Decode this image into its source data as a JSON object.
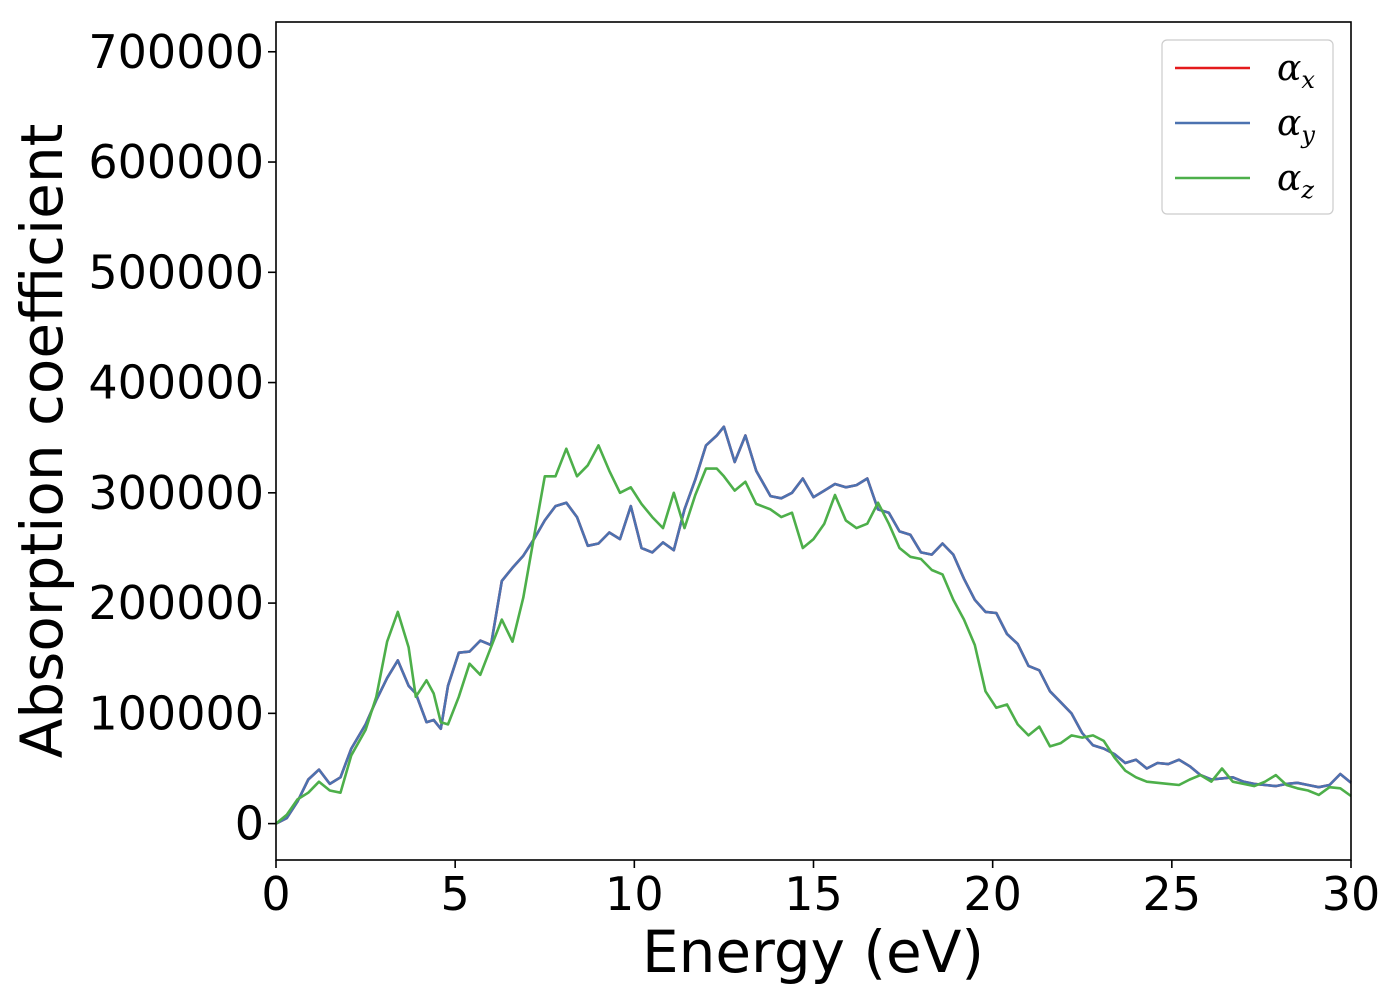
{
  "chart_data": {
    "type": "line",
    "xlabel": "Energy (eV)",
    "ylabel": "Absorption coefficient",
    "xlim": [
      0,
      30
    ],
    "ylim": [
      -33000,
      727000
    ],
    "xticks": [
      0,
      5,
      10,
      15,
      20,
      25,
      30
    ],
    "xtick_labels": [
      "0",
      "5",
      "10",
      "15",
      "20",
      "25",
      "30"
    ],
    "yticks": [
      0,
      100000,
      200000,
      300000,
      400000,
      500000,
      600000,
      700000
    ],
    "ytick_labels": [
      "0",
      "100000",
      "200000",
      "300000",
      "400000",
      "500000",
      "600000",
      "700000"
    ],
    "grid": false,
    "legend_position": "top-right",
    "series": [
      {
        "name": "αx",
        "symbol": "α",
        "subscript": "x",
        "color": "#e41a1c",
        "x": [
          0,
          0.3,
          0.6,
          0.9,
          1.2,
          1.5,
          1.8,
          2.1,
          2.5,
          2.8,
          3.1,
          3.4,
          3.7,
          3.9,
          4.2,
          4.4,
          4.6,
          4.8,
          5.1,
          5.4,
          5.7,
          6.0,
          6.3,
          6.6,
          6.9,
          7.2,
          7.5,
          7.8,
          8.1,
          8.4,
          8.7,
          9.0,
          9.3,
          9.6,
          9.9,
          10.2,
          10.5,
          10.8,
          11.1,
          11.4,
          11.7,
          12.0,
          12.3,
          12.5,
          12.8,
          13.1,
          13.4,
          13.8,
          14.1,
          14.4,
          14.7,
          15.0,
          15.3,
          15.6,
          15.9,
          16.2,
          16.5,
          16.8,
          17.1,
          17.4,
          17.7,
          18.0,
          18.3,
          18.6,
          18.9,
          19.2,
          19.5,
          19.8,
          20.1,
          20.4,
          20.7,
          21.0,
          21.3,
          21.6,
          21.9,
          22.2,
          22.5,
          22.8,
          23.1,
          23.4,
          23.7,
          24.0,
          24.3,
          24.6,
          24.9,
          25.2,
          25.5,
          25.8,
          26.1,
          26.4,
          26.7,
          27.0,
          27.3,
          27.6,
          27.9,
          28.2,
          28.5,
          28.8,
          29.1,
          29.4,
          29.7,
          30.0
        ],
        "y": [
          0,
          5000,
          20000,
          40000,
          49000,
          36000,
          42000,
          68000,
          90000,
          112000,
          132000,
          148000,
          125000,
          118000,
          92000,
          94000,
          86000,
          125000,
          155000,
          156000,
          166000,
          162000,
          220000,
          232000,
          243000,
          258000,
          275000,
          288000,
          291000,
          278000,
          252000,
          254000,
          264000,
          258000,
          288000,
          250000,
          246000,
          255000,
          248000,
          285000,
          312000,
          343000,
          352000,
          360000,
          328000,
          352000,
          320000,
          297000,
          295000,
          300000,
          313000,
          296000,
          302000,
          308000,
          305000,
          307000,
          313000,
          285000,
          282000,
          265000,
          262000,
          246000,
          244000,
          254000,
          244000,
          222000,
          203000,
          192000,
          191000,
          172000,
          163000,
          143000,
          139000,
          120000,
          110000,
          100000,
          82000,
          71000,
          68000,
          63000,
          55000,
          58000,
          50000,
          55000,
          54000,
          58000,
          52000,
          44000,
          40000,
          41000,
          42000,
          38000,
          36000,
          35000,
          34000,
          36000,
          37000,
          35000,
          33000,
          35000,
          45000,
          37000
        ]
      },
      {
        "name": "αy",
        "symbol": "α",
        "subscript": "y",
        "color": "#4c72b0",
        "x": [
          0,
          0.3,
          0.6,
          0.9,
          1.2,
          1.5,
          1.8,
          2.1,
          2.5,
          2.8,
          3.1,
          3.4,
          3.7,
          3.9,
          4.2,
          4.4,
          4.6,
          4.8,
          5.1,
          5.4,
          5.7,
          6.0,
          6.3,
          6.6,
          6.9,
          7.2,
          7.5,
          7.8,
          8.1,
          8.4,
          8.7,
          9.0,
          9.3,
          9.6,
          9.9,
          10.2,
          10.5,
          10.8,
          11.1,
          11.4,
          11.7,
          12.0,
          12.3,
          12.5,
          12.8,
          13.1,
          13.4,
          13.8,
          14.1,
          14.4,
          14.7,
          15.0,
          15.3,
          15.6,
          15.9,
          16.2,
          16.5,
          16.8,
          17.1,
          17.4,
          17.7,
          18.0,
          18.3,
          18.6,
          18.9,
          19.2,
          19.5,
          19.8,
          20.1,
          20.4,
          20.7,
          21.0,
          21.3,
          21.6,
          21.9,
          22.2,
          22.5,
          22.8,
          23.1,
          23.4,
          23.7,
          24.0,
          24.3,
          24.6,
          24.9,
          25.2,
          25.5,
          25.8,
          26.1,
          26.4,
          26.7,
          27.0,
          27.3,
          27.6,
          27.9,
          28.2,
          28.5,
          28.8,
          29.1,
          29.4,
          29.7,
          30.0
        ],
        "y": [
          0,
          5000,
          20000,
          40000,
          49000,
          36000,
          42000,
          68000,
          90000,
          112000,
          132000,
          148000,
          125000,
          118000,
          92000,
          94000,
          86000,
          125000,
          155000,
          156000,
          166000,
          162000,
          220000,
          232000,
          243000,
          258000,
          275000,
          288000,
          291000,
          278000,
          252000,
          254000,
          264000,
          258000,
          288000,
          250000,
          246000,
          255000,
          248000,
          285000,
          312000,
          343000,
          352000,
          360000,
          328000,
          352000,
          320000,
          297000,
          295000,
          300000,
          313000,
          296000,
          302000,
          308000,
          305000,
          307000,
          313000,
          285000,
          282000,
          265000,
          262000,
          246000,
          244000,
          254000,
          244000,
          222000,
          203000,
          192000,
          191000,
          172000,
          163000,
          143000,
          139000,
          120000,
          110000,
          100000,
          82000,
          71000,
          68000,
          63000,
          55000,
          58000,
          50000,
          55000,
          54000,
          58000,
          52000,
          44000,
          40000,
          41000,
          42000,
          38000,
          36000,
          35000,
          34000,
          36000,
          37000,
          35000,
          33000,
          35000,
          45000,
          37000
        ]
      },
      {
        "name": "αz",
        "symbol": "α",
        "subscript": "z",
        "color": "#4daf4a",
        "x": [
          0,
          0.3,
          0.6,
          0.9,
          1.2,
          1.5,
          1.8,
          2.1,
          2.5,
          2.8,
          3.1,
          3.4,
          3.7,
          3.9,
          4.2,
          4.4,
          4.6,
          4.8,
          5.1,
          5.4,
          5.7,
          6.0,
          6.3,
          6.6,
          6.9,
          7.2,
          7.5,
          7.8,
          8.1,
          8.4,
          8.7,
          9.0,
          9.3,
          9.6,
          9.9,
          10.2,
          10.5,
          10.8,
          11.1,
          11.4,
          11.7,
          12.0,
          12.3,
          12.5,
          12.8,
          13.1,
          13.4,
          13.8,
          14.1,
          14.4,
          14.7,
          15.0,
          15.3,
          15.6,
          15.9,
          16.2,
          16.5,
          16.8,
          17.1,
          17.4,
          17.7,
          18.0,
          18.3,
          18.6,
          18.9,
          19.2,
          19.5,
          19.8,
          20.1,
          20.4,
          20.7,
          21.0,
          21.3,
          21.6,
          21.9,
          22.2,
          22.5,
          22.8,
          23.1,
          23.4,
          23.7,
          24.0,
          24.3,
          24.6,
          24.9,
          25.2,
          25.5,
          25.8,
          26.1,
          26.4,
          26.7,
          27.0,
          27.3,
          27.6,
          27.9,
          28.2,
          28.5,
          28.8,
          29.1,
          29.4,
          29.7,
          30.0
        ],
        "y": [
          0,
          8000,
          22000,
          28000,
          38000,
          30000,
          28000,
          62000,
          85000,
          115000,
          165000,
          192000,
          160000,
          115000,
          130000,
          118000,
          92000,
          90000,
          115000,
          145000,
          135000,
          160000,
          185000,
          165000,
          205000,
          260000,
          315000,
          315000,
          340000,
          315000,
          325000,
          343000,
          320000,
          300000,
          305000,
          290000,
          278000,
          268000,
          300000,
          268000,
          298000,
          322000,
          322000,
          315000,
          302000,
          310000,
          290000,
          285000,
          278000,
          282000,
          250000,
          258000,
          272000,
          298000,
          275000,
          268000,
          272000,
          291000,
          272000,
          250000,
          242000,
          240000,
          230000,
          226000,
          203000,
          185000,
          162000,
          120000,
          105000,
          108000,
          90000,
          80000,
          88000,
          70000,
          73000,
          80000,
          78000,
          80000,
          75000,
          60000,
          48000,
          42000,
          38000,
          37000,
          36000,
          35000,
          40000,
          44000,
          38000,
          50000,
          38000,
          36000,
          34000,
          38000,
          44000,
          35000,
          32000,
          30000,
          26000,
          33000,
          32000,
          25000
        ]
      }
    ]
  }
}
